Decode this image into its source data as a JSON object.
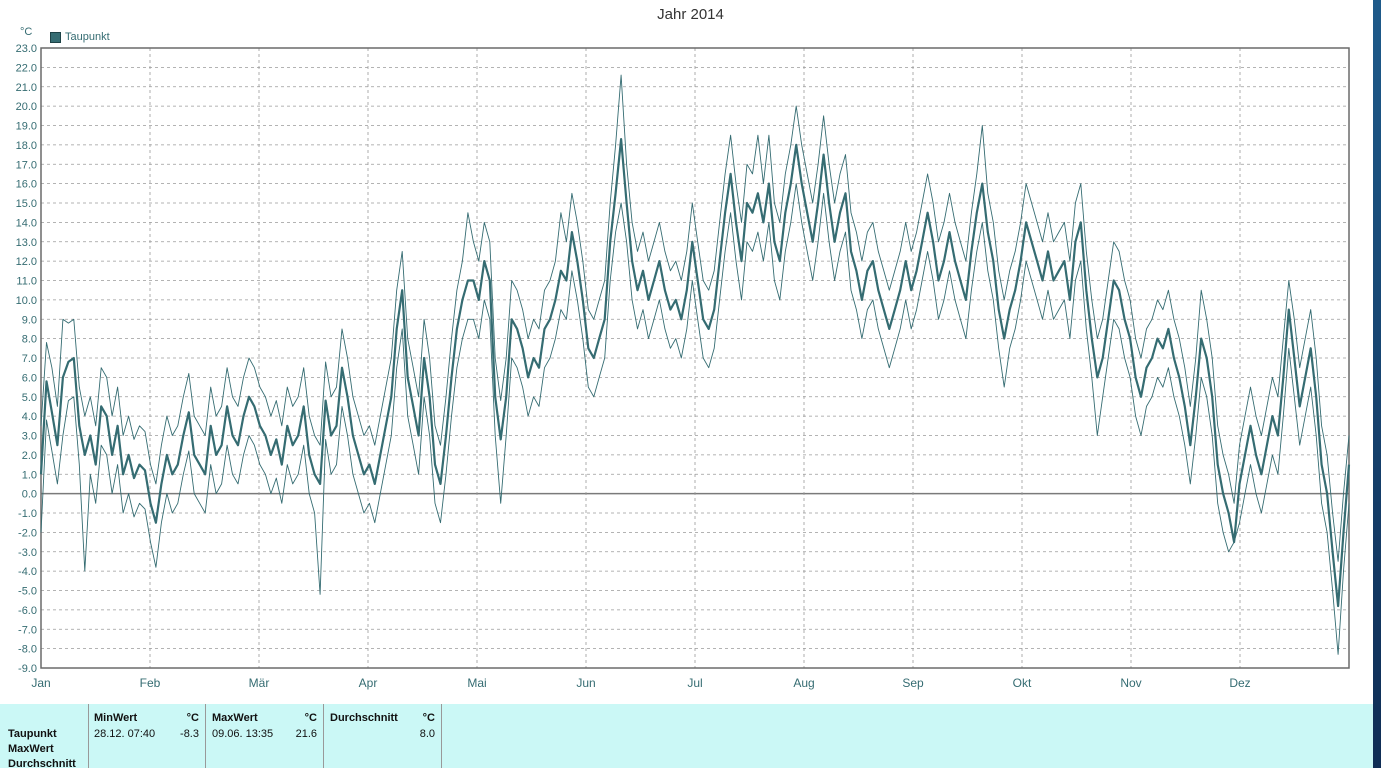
{
  "chart_data": {
    "type": "line",
    "title": "Jahr 2014",
    "ylabel": "°C",
    "ylim": [
      -9,
      23
    ],
    "yticks": [
      "23.0",
      "22.0",
      "21.0",
      "20.0",
      "19.0",
      "18.0",
      "17.0",
      "16.0",
      "15.0",
      "14.0",
      "13.0",
      "12.0",
      "11.0",
      "10.0",
      "9.0",
      "8.0",
      "7.0",
      "6.0",
      "5.0",
      "4.0",
      "3.0",
      "2.0",
      "1.0",
      "0.0",
      "-1.0",
      "-2.0",
      "-3.0",
      "-4.0",
      "-5.0",
      "-6.0",
      "-7.0",
      "-8.0",
      "-9.0"
    ],
    "months": [
      "Jan",
      "Feb",
      "Mär",
      "Apr",
      "Mai",
      "Jun",
      "Jul",
      "Aug",
      "Sep",
      "Okt",
      "Nov",
      "Dez"
    ],
    "grid": true,
    "legend": "top-left",
    "colors": {
      "line": "#356c72",
      "zero_line": "#7a7a7a",
      "grid": "#9a9a9a"
    },
    "series": [
      {
        "name": "Taupunkt",
        "role": "mean",
        "values": [
          1.0,
          5.8,
          4.2,
          2.5,
          6.0,
          6.8,
          7.0,
          3.5,
          2.0,
          3.0,
          1.5,
          4.5,
          4.0,
          2.0,
          3.5,
          1.0,
          2.0,
          0.8,
          1.5,
          1.2,
          -0.5,
          -1.5,
          0.5,
          2.0,
          1.0,
          1.5,
          3.0,
          4.2,
          2.0,
          1.5,
          1.0,
          3.5,
          2.0,
          2.5,
          4.5,
          3.0,
          2.5,
          4.0,
          5.0,
          4.5,
          3.5,
          3.0,
          2.0,
          2.8,
          1.5,
          3.5,
          2.5,
          3.0,
          4.5,
          2.0,
          1.0,
          0.5,
          4.8,
          3.0,
          3.5,
          6.5,
          5.0,
          3.0,
          2.0,
          1.0,
          1.5,
          0.5,
          2.0,
          3.5,
          5.0,
          8.5,
          10.5,
          6.0,
          4.5,
          3.0,
          7.0,
          5.0,
          1.5,
          0.5,
          3.0,
          6.0,
          8.5,
          10.0,
          11.0,
          11.0,
          10.0,
          12.0,
          11.0,
          5.0,
          2.8,
          5.0,
          9.0,
          8.5,
          7.5,
          6.0,
          7.0,
          6.5,
          8.5,
          9.0,
          10.0,
          11.5,
          11.0,
          13.5,
          12.0,
          10.0,
          7.5,
          7.0,
          8.0,
          9.0,
          13.0,
          15.5,
          18.3,
          15.0,
          12.0,
          10.5,
          11.5,
          10.0,
          11.0,
          12.0,
          10.5,
          9.5,
          10.0,
          9.0,
          10.5,
          13.0,
          11.0,
          9.0,
          8.5,
          9.5,
          12.0,
          14.5,
          16.5,
          14.0,
          12.0,
          15.0,
          14.5,
          15.5,
          14.0,
          16.0,
          13.0,
          12.0,
          14.5,
          16.0,
          18.0,
          16.0,
          14.5,
          13.0,
          15.0,
          17.5,
          15.0,
          13.0,
          14.5,
          15.5,
          12.5,
          11.5,
          10.0,
          11.5,
          12.0,
          10.5,
          9.5,
          8.5,
          9.5,
          10.5,
          12.0,
          10.5,
          11.5,
          13.0,
          14.5,
          13.0,
          11.0,
          12.0,
          13.5,
          12.0,
          11.0,
          10.0,
          12.5,
          14.5,
          16.0,
          13.5,
          12.0,
          9.5,
          8.0,
          9.5,
          10.5,
          12.0,
          14.0,
          13.0,
          12.0,
          11.0,
          12.5,
          11.0,
          11.5,
          12.0,
          10.0,
          13.0,
          14.0,
          10.5,
          8.0,
          6.0,
          7.0,
          9.0,
          11.0,
          10.5,
          9.0,
          8.0,
          6.0,
          5.0,
          6.5,
          7.0,
          8.0,
          7.5,
          8.5,
          7.0,
          6.0,
          4.5,
          2.5,
          5.0,
          8.0,
          7.0,
          5.0,
          1.5,
          0.0,
          -1.0,
          -2.5,
          0.5,
          2.0,
          3.5,
          2.0,
          1.0,
          2.5,
          4.0,
          3.0,
          6.0,
          9.5,
          7.0,
          4.5,
          6.0,
          7.5,
          5.0,
          1.5,
          0.0,
          -3.0,
          -5.8,
          -2.0,
          1.5
        ]
      },
      {
        "name": "MaxWert",
        "role": "max",
        "values": [
          3.5,
          7.8,
          6.5,
          4.5,
          9.0,
          8.8,
          9.0,
          5.5,
          4.0,
          5.0,
          3.5,
          6.5,
          6.0,
          4.0,
          5.5,
          3.0,
          4.0,
          2.8,
          3.5,
          3.2,
          1.5,
          0.5,
          2.5,
          4.0,
          3.0,
          3.5,
          5.0,
          6.2,
          4.0,
          3.5,
          3.0,
          5.5,
          4.0,
          4.5,
          6.5,
          5.0,
          4.5,
          6.0,
          7.0,
          6.5,
          5.5,
          5.0,
          4.0,
          4.8,
          3.5,
          5.5,
          4.5,
          5.0,
          6.5,
          4.0,
          3.0,
          2.5,
          6.8,
          5.0,
          5.5,
          8.5,
          7.0,
          5.0,
          4.0,
          3.0,
          3.5,
          2.5,
          4.0,
          5.5,
          7.0,
          10.5,
          12.5,
          8.0,
          6.5,
          5.0,
          9.0,
          7.0,
          3.5,
          2.5,
          5.0,
          8.0,
          10.5,
          12.0,
          14.5,
          13.0,
          12.0,
          14.0,
          13.0,
          7.0,
          4.8,
          7.0,
          11.0,
          10.5,
          9.5,
          8.0,
          9.0,
          8.5,
          10.5,
          11.0,
          12.0,
          14.5,
          13.0,
          15.5,
          14.0,
          12.0,
          9.5,
          9.0,
          10.0,
          11.0,
          15.0,
          18.0,
          21.6,
          17.0,
          14.0,
          12.5,
          13.5,
          12.0,
          13.0,
          14.0,
          12.5,
          11.5,
          12.0,
          11.0,
          12.5,
          15.0,
          13.0,
          11.0,
          10.5,
          11.5,
          14.0,
          16.5,
          18.5,
          16.0,
          14.0,
          17.0,
          16.5,
          18.5,
          16.0,
          18.5,
          15.0,
          14.0,
          16.5,
          18.0,
          20.0,
          18.0,
          16.5,
          15.0,
          17.0,
          19.5,
          17.0,
          15.0,
          16.5,
          17.5,
          14.5,
          13.5,
          12.0,
          13.5,
          14.0,
          12.5,
          11.5,
          10.5,
          11.5,
          12.5,
          14.0,
          12.5,
          13.5,
          15.0,
          16.5,
          15.0,
          13.0,
          14.0,
          15.5,
          14.0,
          13.0,
          12.0,
          14.5,
          16.5,
          19.0,
          15.5,
          14.0,
          11.5,
          10.0,
          11.5,
          12.5,
          14.0,
          16.0,
          15.0,
          14.0,
          13.0,
          14.5,
          13.0,
          13.5,
          14.0,
          12.0,
          15.0,
          16.0,
          12.5,
          10.0,
          8.0,
          9.0,
          11.0,
          13.0,
          12.5,
          11.0,
          10.0,
          8.0,
          7.0,
          8.5,
          9.0,
          10.0,
          9.5,
          10.5,
          9.0,
          8.0,
          6.5,
          4.5,
          7.0,
          10.5,
          9.0,
          7.0,
          3.5,
          2.0,
          1.0,
          -0.5,
          2.5,
          4.0,
          5.5,
          4.0,
          3.0,
          4.5,
          6.0,
          5.0,
          8.0,
          11.0,
          9.0,
          6.5,
          8.0,
          9.5,
          7.0,
          3.5,
          2.0,
          -1.0,
          -3.5,
          0.0,
          3.0
        ]
      },
      {
        "name": "MinWert",
        "role": "min",
        "values": [
          -2.0,
          3.8,
          2.2,
          0.5,
          3.0,
          4.8,
          5.0,
          1.5,
          -4.0,
          1.0,
          -0.5,
          2.5,
          2.0,
          0.0,
          1.5,
          -1.0,
          0.0,
          -1.2,
          -0.5,
          -0.8,
          -2.5,
          -3.8,
          -1.5,
          0.0,
          -1.0,
          -0.5,
          1.0,
          2.2,
          0.0,
          -0.5,
          -1.0,
          1.5,
          0.0,
          0.5,
          2.5,
          1.0,
          0.5,
          2.0,
          3.0,
          2.5,
          1.5,
          1.0,
          0.0,
          0.8,
          -0.5,
          1.5,
          0.5,
          1.0,
          2.5,
          0.0,
          -1.0,
          -5.2,
          2.8,
          1.0,
          1.5,
          4.5,
          3.0,
          1.0,
          0.0,
          -1.0,
          -0.5,
          -1.5,
          0.0,
          1.5,
          3.0,
          6.5,
          8.5,
          4.0,
          2.5,
          1.0,
          5.0,
          3.0,
          -0.5,
          -1.5,
          1.0,
          4.0,
          6.5,
          8.0,
          9.0,
          9.0,
          8.0,
          10.0,
          9.0,
          3.0,
          -0.5,
          3.0,
          7.0,
          6.5,
          5.5,
          4.0,
          5.0,
          4.5,
          6.5,
          7.0,
          8.0,
          9.5,
          9.0,
          11.5,
          10.0,
          8.0,
          5.5,
          5.0,
          6.0,
          7.0,
          11.0,
          13.5,
          15.0,
          13.0,
          10.0,
          8.5,
          9.5,
          8.0,
          9.0,
          10.0,
          8.5,
          7.5,
          8.0,
          7.0,
          8.5,
          11.0,
          9.0,
          7.0,
          6.5,
          7.5,
          10.0,
          12.5,
          14.5,
          12.0,
          10.0,
          13.0,
          12.5,
          13.5,
          12.0,
          14.0,
          11.0,
          10.0,
          12.5,
          14.0,
          16.0,
          14.0,
          12.5,
          11.0,
          13.0,
          15.5,
          13.0,
          11.0,
          12.5,
          13.5,
          10.5,
          9.5,
          8.0,
          9.5,
          10.0,
          8.5,
          7.5,
          6.5,
          7.5,
          8.5,
          10.0,
          8.5,
          9.5,
          11.0,
          12.5,
          11.0,
          9.0,
          10.0,
          11.5,
          10.0,
          9.0,
          8.0,
          10.5,
          12.5,
          14.0,
          11.5,
          10.0,
          7.5,
          5.5,
          7.5,
          8.5,
          10.0,
          12.0,
          11.0,
          10.0,
          9.0,
          10.5,
          9.0,
          9.5,
          10.0,
          8.0,
          11.0,
          12.0,
          8.5,
          6.0,
          3.0,
          5.0,
          7.0,
          9.0,
          8.5,
          7.0,
          6.0,
          4.0,
          3.0,
          4.5,
          5.0,
          6.0,
          5.5,
          6.5,
          5.0,
          4.0,
          2.5,
          0.5,
          3.0,
          6.0,
          5.0,
          3.0,
          -0.5,
          -2.0,
          -3.0,
          -2.5,
          -1.5,
          0.0,
          1.5,
          0.0,
          -1.0,
          0.5,
          2.0,
          1.0,
          4.0,
          7.5,
          5.0,
          2.5,
          4.0,
          5.5,
          3.0,
          -0.5,
          -2.0,
          -5.0,
          -8.3,
          -4.0,
          -0.5
        ]
      }
    ]
  },
  "legend": {
    "label": "Taupunkt"
  },
  "stats": {
    "min": {
      "header": "MinWert",
      "unit": "°C",
      "datetime": "28.12.  07:40",
      "value": "-8.3"
    },
    "max": {
      "header": "MaxWert",
      "unit": "°C",
      "datetime": "09.06.  13:35",
      "value": "21.6"
    },
    "avg": {
      "header": "Durchschnitt",
      "unit": "°C",
      "value": "8.0"
    },
    "rows": [
      "Taupunkt",
      "MaxWert",
      "Durchschnitt"
    ]
  }
}
